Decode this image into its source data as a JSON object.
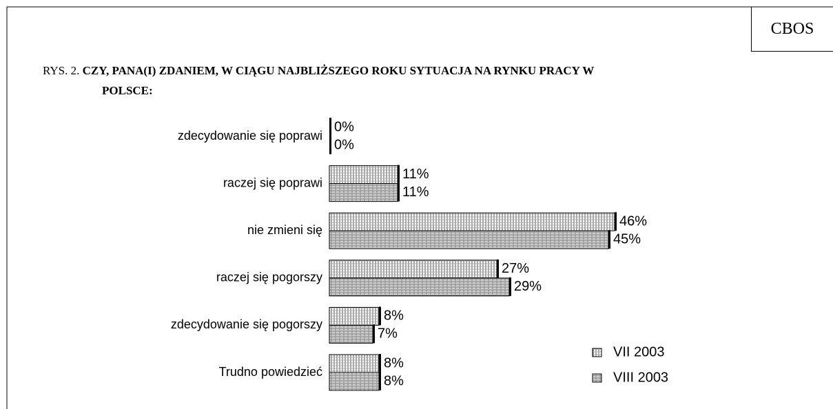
{
  "chart_data": {
    "type": "bar",
    "orientation": "horizontal",
    "source": "CBOS",
    "figure_label": "RYS. 2.",
    "title": "CZY, PANA(I) ZDANIEM, W CIĄGU NAJBLIŻSZEGO ROKU SYTUACJA NA RYNKU PRACY W POLSCE:",
    "categories": [
      "zdecydowanie się poprawi",
      "raczej się poprawi",
      "nie zmieni się",
      "raczej się pogorszy",
      "zdecydowanie się pogorszy",
      "Trudno powiedzieć"
    ],
    "series": [
      {
        "name": "VII 2003",
        "values": [
          0,
          11,
          46,
          27,
          8,
          8
        ],
        "value_labels": [
          "0%",
          "11%",
          "46%",
          "27%",
          "8%",
          "8%"
        ]
      },
      {
        "name": "VIII 2003",
        "values": [
          0,
          11,
          45,
          29,
          7,
          8
        ],
        "value_labels": [
          "0%",
          "11%",
          "45%",
          "29%",
          "7%",
          "8%"
        ]
      }
    ],
    "legend": "lower right"
  }
}
